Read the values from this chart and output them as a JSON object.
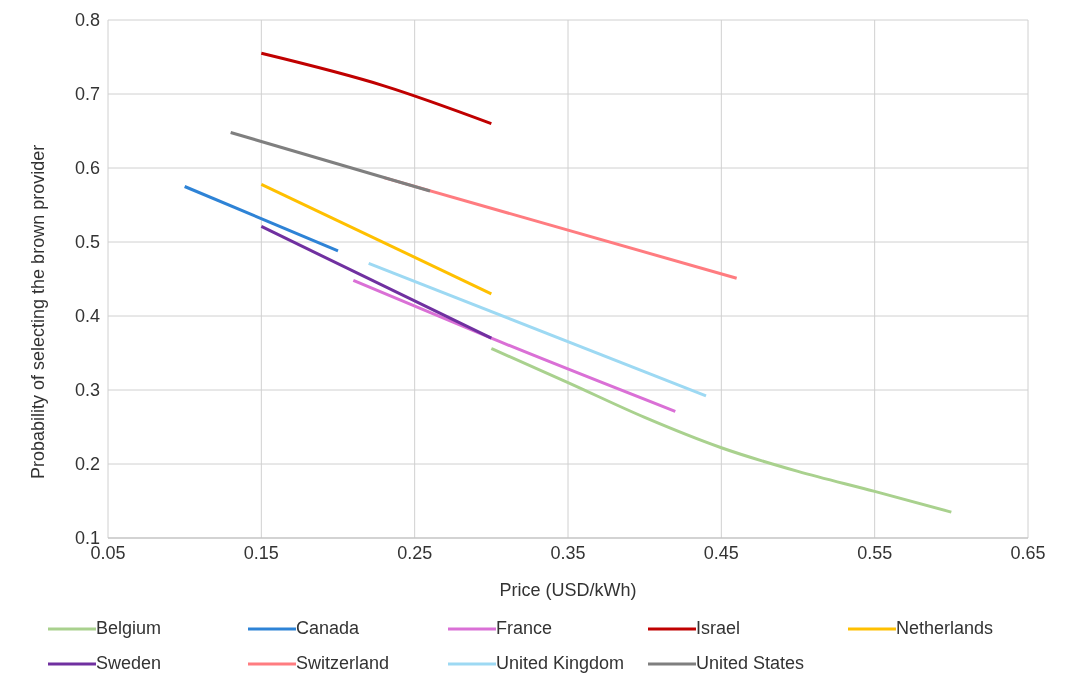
{
  "chart_data": {
    "type": "line",
    "xlabel": "Price (USD/kWh)",
    "ylabel": "Probability of selecting the brown provider",
    "xlim": [
      0.05,
      0.65
    ],
    "xticks": [
      0.05,
      0.15,
      0.25,
      0.35,
      0.45,
      0.55,
      0.65
    ],
    "ylim": [
      0.1,
      0.8
    ],
    "yticks": [
      0.1,
      0.2,
      0.3,
      0.4,
      0.5,
      0.6,
      0.7,
      0.8
    ],
    "grid": true,
    "legend": "bottom",
    "marker": "none",
    "line_style": "solid",
    "series": [
      {
        "name": "Belgium",
        "color": "#a9d18e",
        "x": [
          0.3,
          0.35,
          0.4,
          0.45,
          0.5,
          0.55,
          0.6
        ],
        "values": [
          0.356,
          0.31,
          0.263,
          0.222,
          0.19,
          0.163,
          0.135
        ]
      },
      {
        "name": "Canada",
        "color": "#2e83d6",
        "x": [
          0.1,
          0.2
        ],
        "values": [
          0.575,
          0.488
        ]
      },
      {
        "name": "France",
        "color": "#da70d6",
        "x": [
          0.21,
          0.3,
          0.42
        ],
        "values": [
          0.448,
          0.37,
          0.271
        ]
      },
      {
        "name": "Israel",
        "color": "#c00000",
        "x": [
          0.15,
          0.23,
          0.3
        ],
        "values": [
          0.755,
          0.711,
          0.66
        ]
      },
      {
        "name": "Netherlands",
        "color": "#ffc000",
        "x": [
          0.15,
          0.3
        ],
        "values": [
          0.578,
          0.43
        ]
      },
      {
        "name": "Sweden",
        "color": "#7030a0",
        "x": [
          0.15,
          0.3
        ],
        "values": [
          0.521,
          0.37
        ]
      },
      {
        "name": "Switzerland",
        "color": "#ff7c80",
        "x": [
          0.23,
          0.46
        ],
        "values": [
          0.587,
          0.451
        ]
      },
      {
        "name": "United Kingdom",
        "color": "#9dd9f3",
        "x": [
          0.22,
          0.44
        ],
        "values": [
          0.471,
          0.292
        ]
      },
      {
        "name": "United States",
        "color": "#7f7f7f",
        "x": [
          0.13,
          0.26
        ],
        "values": [
          0.648,
          0.569
        ]
      }
    ]
  }
}
